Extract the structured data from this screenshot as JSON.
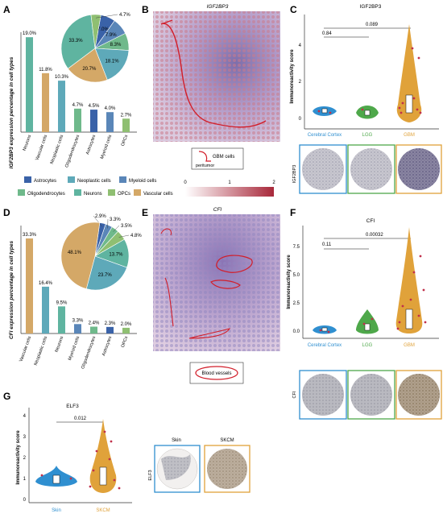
{
  "panels": {
    "A": {
      "letter": "A",
      "ylabel": "IGF2BP3 expression percentage in cell types",
      "bars": [
        {
          "cat": "Neurons",
          "value": 19.0,
          "label": "19.0%",
          "color": "#5fb4a0"
        },
        {
          "cat": "Vascular cells",
          "value": 11.8,
          "label": "11.8%",
          "color": "#d4a867"
        },
        {
          "cat": "Neoplastic cells",
          "value": 10.3,
          "label": "10.3%",
          "color": "#5ea9b9"
        },
        {
          "cat": "Oligodendrocytes",
          "value": 4.7,
          "label": "4.7%",
          "color": "#6fb98b"
        },
        {
          "cat": "Astrocytes",
          "value": 4.5,
          "label": "4.5%",
          "color": "#3a62a8"
        },
        {
          "cat": "Myeloid cells",
          "value": 4.0,
          "label": "4.0%",
          "color": "#5a86b8"
        },
        {
          "cat": "OPCs",
          "value": 2.7,
          "label": "2.7%",
          "color": "#8fbf72"
        }
      ],
      "pie": [
        {
          "name": "Astrocytes",
          "value": 7.0,
          "label": "7.0%",
          "color": "#3a62a8"
        },
        {
          "name": "Myeloid cells",
          "value": 7.9,
          "label": "7.9%",
          "color": "#5a86b8"
        },
        {
          "name": "Oligodendrocytes",
          "value": 8.3,
          "label": "8.3%",
          "color": "#6fb98b"
        },
        {
          "name": "Neoplastic cells",
          "value": 18.1,
          "label": "18.1%",
          "color": "#5ea9b9"
        },
        {
          "name": "Vascular cells",
          "value": 20.7,
          "label": "20.7%",
          "color": "#d4a867"
        },
        {
          "name": "Neurons",
          "value": 33.3,
          "label": "33.3%",
          "color": "#5fb4a0"
        },
        {
          "name": "OPCs",
          "value": 4.7,
          "label": "4.7%",
          "color": "#8fbf72"
        }
      ]
    },
    "B": {
      "letter": "B",
      "title": "IGF2BP3",
      "legend": "GBM cells",
      "annot": "peritumor"
    },
    "C": {
      "letter": "C",
      "title": "IGF2BP3",
      "ylabel": "Immunoreactivity score",
      "yticks": [
        "0",
        "2",
        "4"
      ],
      "p1": "0.84",
      "p2": "0.089",
      "groups": [
        {
          "name": "Cerebral Cortex",
          "color": "#2f8fd0"
        },
        {
          "name": "LGG",
          "color": "#4ea84a"
        },
        {
          "name": "GBM",
          "color": "#e0a23a"
        }
      ],
      "ihc": "IGF2BP3"
    },
    "legendAB": {
      "items": [
        {
          "name": "Astrocytes",
          "color": "#3a62a8"
        },
        {
          "name": "Neoplastic cells",
          "color": "#5ea9b9"
        },
        {
          "name": "Myeloid cells",
          "color": "#5a86b8"
        },
        {
          "name": "Oligodendrocytes",
          "color": "#6fb98b"
        },
        {
          "name": "Neurons",
          "color": "#5fb4a0"
        },
        {
          "name": "OPCs",
          "color": "#8fbf72"
        },
        {
          "name": "Vascular cells",
          "color": "#d4a867"
        }
      ],
      "scale": [
        "0",
        "1",
        "2"
      ]
    },
    "D": {
      "letter": "D",
      "ylabel": "CFI expression percentage in cell types",
      "bars": [
        {
          "cat": "Vascular cells",
          "value": 33.3,
          "label": "33.3%",
          "color": "#d4a867"
        },
        {
          "cat": "Neoplastic cells",
          "value": 16.4,
          "label": "16.4%",
          "color": "#5ea9b9"
        },
        {
          "cat": "Neurons",
          "value": 9.5,
          "label": "9.5%",
          "color": "#5fb4a0"
        },
        {
          "cat": "Myeloid cells",
          "value": 3.3,
          "label": "3.3%",
          "color": "#5a86b8"
        },
        {
          "cat": "Oligodendrocytes",
          "value": 2.4,
          "label": "2.4%",
          "color": "#6fb98b"
        },
        {
          "cat": "Astrocytes",
          "value": 2.3,
          "label": "2.3%",
          "color": "#3a62a8"
        },
        {
          "cat": "OPCs",
          "value": 2.0,
          "label": "2.0%",
          "color": "#8fbf72"
        }
      ],
      "pie": [
        {
          "name": "Astrocytes",
          "value": 2.9,
          "label": "2.9%",
          "color": "#3a62a8"
        },
        {
          "name": "Myeloid cells",
          "value": 3.3,
          "label": "3.3%",
          "color": "#5a86b8"
        },
        {
          "name": "Oligodendrocytes",
          "value": 3.5,
          "label": "3.5%",
          "color": "#6fb98b"
        },
        {
          "name": "OPCs",
          "value": 4.8,
          "label": "4.8%",
          "color": "#8fbf72"
        },
        {
          "name": "Neurons",
          "value": 13.7,
          "label": "13.7%",
          "color": "#5fb4a0"
        },
        {
          "name": "Neoplastic cells",
          "value": 23.7,
          "label": "23.7%",
          "color": "#5ea9b9"
        },
        {
          "name": "Vascular cells",
          "value": 48.1,
          "label": "48.1%",
          "color": "#d4a867"
        }
      ]
    },
    "E": {
      "letter": "E",
      "title": "CFI",
      "legend": "Blood vessels"
    },
    "F": {
      "letter": "F",
      "title": "CFI",
      "ylabel": "Immunoreactivity score",
      "yticks": [
        "0.0",
        "2.5",
        "5.0",
        "7.5"
      ],
      "p1": "0.11",
      "p2": "0.00032",
      "groups": [
        {
          "name": "Cerebral Cortex",
          "color": "#2f8fd0"
        },
        {
          "name": "LGG",
          "color": "#4ea84a"
        },
        {
          "name": "GBM",
          "color": "#e0a23a"
        }
      ],
      "ihc": "CFI"
    },
    "G": {
      "letter": "G",
      "title": "ELF3",
      "ylabel": "Immunoreactivity score",
      "yticks": [
        "0",
        "1",
        "2",
        "3",
        "4"
      ],
      "p": "0.012",
      "groups": [
        {
          "name": "Skin",
          "color": "#2f8fd0"
        },
        {
          "name": "SKCM",
          "color": "#e0a23a"
        }
      ],
      "ihc": "ELF3"
    }
  },
  "chart_data": [
    {
      "type": "bar",
      "title": "",
      "ylabel": "IGF2BP3 expression percentage in cell types",
      "categories": [
        "Neurons",
        "Vascular cells",
        "Neoplastic cells",
        "Oligodendrocytes",
        "Astrocytes",
        "Myeloid cells",
        "OPCs"
      ],
      "values": [
        19.0,
        11.8,
        10.3,
        4.7,
        4.5,
        4.0,
        2.7
      ]
    },
    {
      "type": "pie",
      "categories": [
        "Astrocytes",
        "Myeloid cells",
        "Oligodendrocytes",
        "Neoplastic cells",
        "Vascular cells",
        "Neurons",
        "OPCs"
      ],
      "values": [
        7.0,
        7.9,
        8.3,
        18.1,
        20.7,
        33.3,
        4.7
      ]
    },
    {
      "type": "bar",
      "title": "",
      "ylabel": "CFI expression percentage in cell types",
      "categories": [
        "Vascular cells",
        "Neoplastic cells",
        "Neurons",
        "Myeloid cells",
        "Oligodendrocytes",
        "Astrocytes",
        "OPCs"
      ],
      "values": [
        33.3,
        16.4,
        9.5,
        3.3,
        2.4,
        2.3,
        2.0
      ]
    },
    {
      "type": "pie",
      "categories": [
        "Astrocytes",
        "Myeloid cells",
        "Oligodendrocytes",
        "OPCs",
        "Neurons",
        "Neoplastic cells",
        "Vascular cells"
      ],
      "values": [
        2.9,
        3.3,
        3.5,
        4.8,
        13.7,
        23.7,
        48.1
      ]
    }
  ]
}
